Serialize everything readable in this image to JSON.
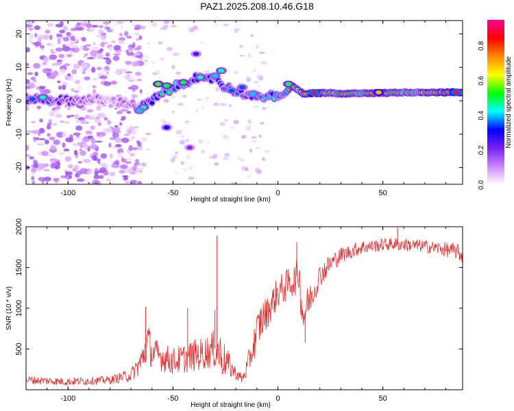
{
  "title": "PAZ1.2025.208.10.46.G18",
  "colors": {
    "trace": "#e82828",
    "axis": "#000000",
    "background": "#ffffff"
  },
  "chart_data": [
    {
      "type": "heatmap",
      "xlabel": "Height of straight line (km)",
      "ylabel": "Frequency (Hz)",
      "xlim": [
        -120,
        88
      ],
      "ylim": [
        -25,
        24
      ],
      "x_ticks": [
        -100,
        -50,
        0,
        50
      ],
      "y_ticks": [
        20,
        10,
        0,
        -10,
        -20
      ],
      "grid": false,
      "colorbar": {
        "label": "Normalized spectral amplitude",
        "range": [
          0,
          0.95
        ],
        "ticks": [
          0.0,
          0.2,
          0.4,
          0.6,
          0.8
        ],
        "colors": [
          "#ffffff",
          "#cc88ff",
          "#7722ee",
          "#0000ff",
          "#00ffff",
          "#00ff00",
          "#ffff00",
          "#ff8800",
          "#ff0000",
          "#ff0099"
        ]
      },
      "ridge": [
        {
          "x": -120,
          "y": 0.5,
          "amp": 0.25
        },
        {
          "x": -110,
          "y": 0.5,
          "amp": 0.3
        },
        {
          "x": -100,
          "y": 0.0,
          "amp": 0.2
        },
        {
          "x": -90,
          "y": 0.5,
          "amp": 0.15
        },
        {
          "x": -80,
          "y": 0.0,
          "amp": 0.1
        },
        {
          "x": -70,
          "y": -1,
          "amp": 0.15
        },
        {
          "x": -65,
          "y": -2,
          "amp": 0.25
        },
        {
          "x": -60,
          "y": 0,
          "amp": 0.35
        },
        {
          "x": -55,
          "y": 2,
          "amp": 0.4
        },
        {
          "x": -50,
          "y": 4,
          "amp": 0.4
        },
        {
          "x": -45,
          "y": 5,
          "amp": 0.35
        },
        {
          "x": -40,
          "y": 7,
          "amp": 0.3
        },
        {
          "x": -35,
          "y": 6,
          "amp": 0.3
        },
        {
          "x": -30,
          "y": 7,
          "amp": 0.3
        },
        {
          "x": -25,
          "y": 4,
          "amp": 0.3
        },
        {
          "x": -20,
          "y": 3,
          "amp": 0.3
        },
        {
          "x": -15,
          "y": 2,
          "amp": 0.3
        },
        {
          "x": -10,
          "y": 1,
          "amp": 0.3
        },
        {
          "x": -5,
          "y": 1.5,
          "amp": 0.4
        },
        {
          "x": 0,
          "y": 1,
          "amp": 0.4
        },
        {
          "x": 3,
          "y": 2,
          "amp": 0.45
        },
        {
          "x": 7,
          "y": 4.5,
          "amp": 0.6
        },
        {
          "x": 12,
          "y": 2,
          "amp": 0.55
        },
        {
          "x": 17,
          "y": 2.3,
          "amp": 0.8
        },
        {
          "x": 25,
          "y": 2.3,
          "amp": 0.55
        },
        {
          "x": 30,
          "y": 2,
          "amp": 0.6
        },
        {
          "x": 40,
          "y": 2.3,
          "amp": 0.5
        },
        {
          "x": 50,
          "y": 2.3,
          "amp": 0.6
        },
        {
          "x": 60,
          "y": 2.5,
          "amp": 0.5
        },
        {
          "x": 70,
          "y": 2.5,
          "amp": 0.55
        },
        {
          "x": 80,
          "y": 2.5,
          "amp": 0.65
        },
        {
          "x": 88,
          "y": 2.5,
          "amp": 0.85
        }
      ],
      "blobs": [
        {
          "x": -57,
          "y": 5,
          "amp": 0.55
        },
        {
          "x": -53,
          "y": 4.5,
          "amp": 0.5
        },
        {
          "x": -45,
          "y": 5.5,
          "amp": 0.5
        },
        {
          "x": -37,
          "y": 7,
          "amp": 0.45
        },
        {
          "x": -27,
          "y": 9,
          "amp": 0.45
        },
        {
          "x": -30,
          "y": 7.5,
          "amp": 0.4
        },
        {
          "x": -39,
          "y": 14,
          "amp": 0.25
        },
        {
          "x": -53,
          "y": -8,
          "amp": 0.3
        },
        {
          "x": -42,
          "y": -14,
          "amp": 0.2
        },
        {
          "x": -64,
          "y": -2,
          "amp": 0.45
        },
        {
          "x": -66,
          "y": -3,
          "amp": 0.4
        },
        {
          "x": -22,
          "y": 3,
          "amp": 0.35
        },
        {
          "x": -17,
          "y": 4,
          "amp": 0.35
        },
        {
          "x": -12,
          "y": 2,
          "amp": 0.4
        },
        {
          "x": 5,
          "y": 5,
          "amp": 0.5
        },
        {
          "x": 17,
          "y": 2.5,
          "amp": 0.9
        },
        {
          "x": 85,
          "y": 2.5,
          "amp": 0.9
        },
        {
          "x": 48,
          "y": 2.5,
          "amp": 0.7
        },
        {
          "x": -112,
          "y": 1,
          "amp": 0.45
        },
        {
          "x": -117,
          "y": 0.5,
          "amp": 0.35
        }
      ]
    },
    {
      "type": "line",
      "xlabel": "Height of straight line (km)",
      "ylabel": "SNR (10 * v/v)",
      "xlim": [
        -120,
        88
      ],
      "ylim": [
        0,
        2000
      ],
      "x_ticks": [
        -100,
        -50,
        0,
        50
      ],
      "y_ticks": [
        500,
        1000,
        1500,
        2000
      ],
      "grid": false,
      "series": [
        {
          "x": [
            -120,
            -110,
            -100,
            -90,
            -80,
            -70,
            -65,
            -62,
            -60,
            -55,
            -50,
            -45,
            -40,
            -35,
            -30,
            -28,
            -25,
            -20,
            -17,
            -15,
            -12,
            -10,
            -8,
            -5,
            -2,
            0,
            3,
            5,
            8,
            10,
            12,
            15,
            20,
            25,
            30,
            35,
            40,
            45,
            50,
            55,
            60,
            65,
            70,
            75,
            80,
            85,
            88
          ],
          "y": [
            120,
            110,
            100,
            110,
            120,
            180,
            350,
            600,
            450,
            400,
            350,
            380,
            420,
            450,
            500,
            450,
            350,
            200,
            130,
            250,
            500,
            700,
            850,
            950,
            1100,
            1200,
            1250,
            1300,
            1350,
            1450,
            900,
            1100,
            1400,
            1550,
            1650,
            1700,
            1750,
            1760,
            1780,
            1790,
            1780,
            1770,
            1760,
            1740,
            1720,
            1700,
            1650
          ],
          "noise": [
            50,
            50,
            50,
            50,
            50,
            80,
            180,
            250,
            200,
            180,
            170,
            180,
            200,
            200,
            250,
            300,
            200,
            80,
            60,
            120,
            200,
            250,
            250,
            200,
            200,
            200,
            200,
            200,
            200,
            250,
            300,
            200,
            150,
            120,
            100,
            90,
            90,
            80,
            80,
            80,
            80,
            80,
            80,
            80,
            90,
            100,
            120
          ],
          "spikes": [
            {
              "x": -29,
              "y": 1890
            },
            {
              "x": -63,
              "y": 1020
            },
            {
              "x": -43,
              "y": 1000
            },
            {
              "x": -30,
              "y": 980
            },
            {
              "x": 9,
              "y": 1810
            },
            {
              "x": 13,
              "y": 580
            },
            {
              "x": 57,
              "y": 1990
            }
          ]
        }
      ]
    }
  ]
}
